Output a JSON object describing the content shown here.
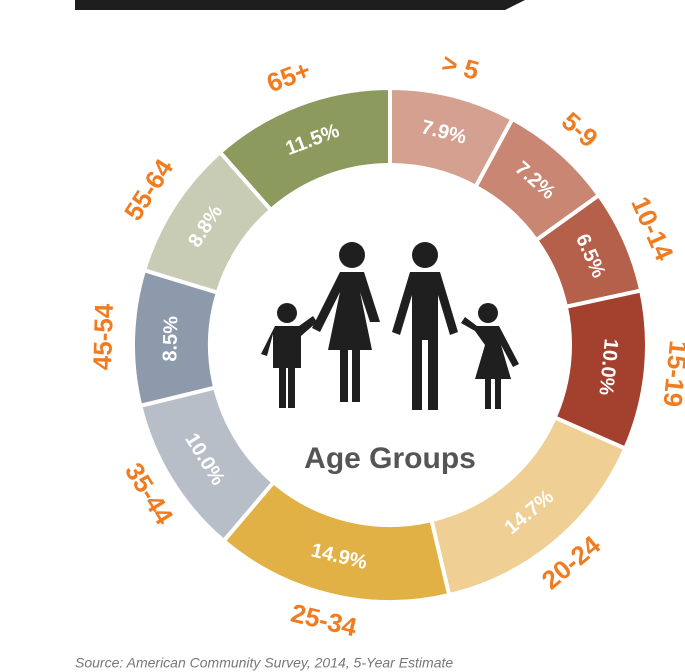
{
  "chart_data": {
    "type": "donut",
    "center_label": "Age Groups",
    "categories": [
      "> 5",
      "5-9",
      "10-14",
      "15-19",
      "20-24",
      "25-34",
      "35-44",
      "45-54",
      "55-64",
      "65+"
    ],
    "values": [
      7.9,
      7.2,
      6.5,
      10.0,
      14.7,
      14.9,
      10.0,
      8.5,
      8.8,
      11.5
    ],
    "value_labels": [
      "7.9%",
      "7.2%",
      "6.5%",
      "10.0%",
      "14.7%",
      "14.9%",
      "10.0%",
      "8.5%",
      "8.8%",
      "11.5%"
    ],
    "colors": [
      "#d4a191",
      "#c98672",
      "#b5604a",
      "#a3412e",
      "#efcf93",
      "#e2b146",
      "#b8bec8",
      "#8d9aab",
      "#c8ccb4",
      "#8c9b5d"
    ],
    "source": "Source:  American Community Survey, 2014, 5-Year Estimate"
  }
}
